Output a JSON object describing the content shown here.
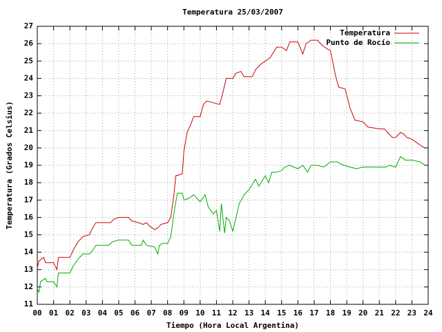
{
  "chart_data": {
    "type": "line",
    "title": "Temperatura 25/03/2007",
    "x_label": "Tiempo (Hora Local Argentina)",
    "y_label": "Temperatura (Grados Celsius)",
    "xlim": [
      0,
      24
    ],
    "ylim": [
      11,
      27
    ],
    "xticks": [
      {
        "value": 0,
        "label": "00"
      },
      {
        "value": 1,
        "label": "01"
      },
      {
        "value": 2,
        "label": "02"
      },
      {
        "value": 3,
        "label": "03"
      },
      {
        "value": 4,
        "label": "04"
      },
      {
        "value": 5,
        "label": "05"
      },
      {
        "value": 6,
        "label": "06"
      },
      {
        "value": 7,
        "label": "07"
      },
      {
        "value": 8,
        "label": "08"
      },
      {
        "value": 9,
        "label": "09"
      },
      10,
      11,
      12,
      13,
      14,
      15,
      16,
      17,
      18,
      19,
      20,
      21,
      22,
      23,
      24
    ],
    "yticks": [
      11,
      12,
      13,
      14,
      15,
      16,
      17,
      18,
      19,
      20,
      21,
      22,
      23,
      24,
      25,
      26,
      27
    ],
    "grid": true,
    "legend_position": "top-right",
    "series": [
      {
        "name": "Temperatura",
        "color": "#cc0000",
        "x": [
          0.0,
          0.1,
          0.4,
          0.5,
          1.0,
          1.2,
          1.3,
          2.0,
          2.2,
          2.5,
          2.8,
          3.2,
          3.4,
          3.6,
          4.0,
          4.5,
          4.7,
          5.0,
          5.6,
          5.8,
          6.2,
          6.5,
          6.7,
          6.9,
          7.2,
          7.4,
          7.6,
          8.0,
          8.2,
          8.4,
          8.5,
          8.9,
          9.0,
          9.2,
          9.4,
          9.6,
          10.0,
          10.2,
          10.4,
          10.8,
          11.2,
          11.4,
          11.6,
          12.0,
          12.2,
          12.5,
          12.7,
          13.2,
          13.4,
          13.7,
          14.0,
          14.3,
          14.5,
          14.7,
          15.0,
          15.3,
          15.5,
          16.0,
          16.3,
          16.5,
          16.8,
          17.2,
          17.5,
          17.8,
          18.0,
          18.3,
          18.5,
          18.9,
          19.2,
          19.5,
          20.0,
          20.3,
          21.0,
          21.3,
          21.5,
          21.8,
          22.0,
          22.3,
          22.5,
          22.7,
          23.0,
          23.3,
          23.6,
          23.8
        ],
        "values": [
          13.1,
          13.5,
          13.7,
          13.4,
          13.4,
          13.0,
          13.7,
          13.7,
          14.1,
          14.6,
          14.9,
          15.0,
          15.4,
          15.7,
          15.7,
          15.7,
          15.9,
          16.0,
          16.0,
          15.8,
          15.7,
          15.6,
          15.7,
          15.5,
          15.3,
          15.4,
          15.6,
          15.7,
          16.0,
          17.4,
          18.4,
          18.5,
          19.8,
          20.9,
          21.3,
          21.8,
          21.8,
          22.5,
          22.7,
          22.6,
          22.5,
          23.2,
          24.0,
          24.0,
          24.3,
          24.4,
          24.1,
          24.1,
          24.5,
          24.8,
          25.0,
          25.2,
          25.5,
          25.8,
          25.8,
          25.6,
          26.1,
          26.1,
          25.4,
          26.0,
          26.2,
          26.2,
          25.9,
          25.7,
          25.6,
          24.2,
          23.5,
          23.4,
          22.3,
          21.6,
          21.5,
          21.2,
          21.1,
          21.1,
          20.9,
          20.6,
          20.6,
          20.9,
          20.8,
          20.6,
          20.5,
          20.3,
          20.1,
          20.0
        ]
      },
      {
        "name": "Punto de Rocío",
        "color": "#00aa00",
        "x": [
          0.0,
          0.1,
          0.2,
          0.5,
          0.6,
          1.0,
          1.2,
          1.3,
          2.0,
          2.2,
          2.5,
          2.8,
          3.2,
          3.4,
          3.6,
          4.0,
          4.4,
          4.6,
          5.0,
          5.6,
          5.8,
          6.4,
          6.5,
          6.7,
          7.2,
          7.4,
          7.5,
          7.7,
          8.0,
          8.2,
          8.4,
          8.6,
          8.9,
          9.0,
          9.3,
          9.6,
          10.0,
          10.3,
          10.5,
          10.8,
          11.0,
          11.2,
          11.3,
          11.5,
          11.6,
          11.8,
          12.0,
          12.2,
          12.4,
          12.7,
          13.0,
          13.2,
          13.4,
          13.6,
          14.0,
          14.2,
          14.4,
          14.7,
          15.0,
          15.2,
          15.5,
          16.0,
          16.3,
          16.6,
          16.8,
          17.2,
          17.6,
          18.0,
          18.4,
          18.8,
          19.2,
          19.6,
          20.0,
          20.5,
          21.0,
          21.4,
          21.6,
          22.0,
          22.2,
          22.3,
          22.6,
          23.0,
          23.5,
          23.8
        ],
        "values": [
          11.9,
          11.7,
          12.3,
          12.5,
          12.3,
          12.3,
          12.0,
          12.8,
          12.8,
          13.2,
          13.6,
          13.9,
          13.9,
          14.1,
          14.4,
          14.4,
          14.4,
          14.6,
          14.7,
          14.7,
          14.4,
          14.4,
          14.7,
          14.4,
          14.3,
          13.9,
          14.4,
          14.5,
          14.5,
          14.9,
          16.3,
          17.4,
          17.4,
          17.0,
          17.1,
          17.3,
          16.9,
          17.3,
          16.6,
          16.2,
          16.4,
          15.2,
          16.8,
          15.1,
          16.0,
          15.8,
          15.2,
          16.0,
          16.8,
          17.3,
          17.6,
          17.9,
          18.2,
          17.8,
          18.4,
          18.0,
          18.6,
          18.6,
          18.7,
          18.9,
          19.0,
          18.8,
          19.0,
          18.6,
          19.0,
          19.0,
          18.9,
          19.2,
          19.2,
          19.0,
          18.9,
          18.8,
          18.9,
          18.9,
          18.9,
          18.9,
          19.0,
          18.9,
          19.3,
          19.5,
          19.3,
          19.3,
          19.2,
          19.0
        ]
      }
    ]
  }
}
